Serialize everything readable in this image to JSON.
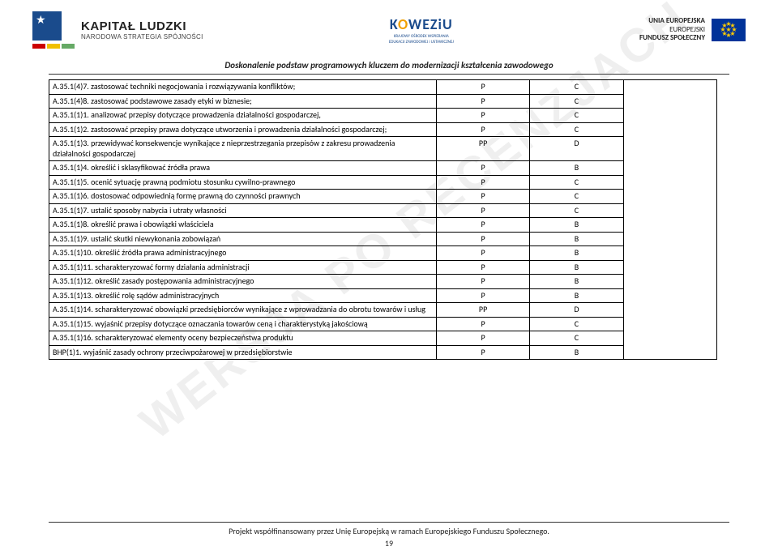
{
  "header": {
    "left": {
      "title": "KAPITAŁ LUDZKI",
      "sub": "NARODOWA STRATEGIA SPÓJNOŚCI"
    },
    "center": {
      "brand_pre": "K",
      "brand_o": "O",
      "brand_post": "WEZiU",
      "sub1": "KRAJOWY OŚRODEK WSPIERANIA",
      "sub2": "EDUKACJI ZAWODOWEJ i USTAWICZNEJ"
    },
    "right": {
      "l1": "UNIA EUROPEJSKA",
      "l2": "EUROPEJSKI",
      "l3": "FUNDUSZ SPOŁECZNY"
    }
  },
  "subtitle": "Doskonalenie podstaw programowych kluczem do modernizacji kształcenia zawodowego",
  "watermark": "WERSJA PO RECENZJACH",
  "rows": [
    {
      "text": "A.35.1(4)7. zastosować techniki negocjowania i rozwiązywania konfliktów;",
      "c2": "P",
      "c3": "C"
    },
    {
      "text": "A.35.1(4)8. zastosować podstawowe zasady etyki w biznesie;",
      "c2": "P",
      "c3": "C"
    },
    {
      "text": "A.35.1(1)1. analizować przepisy dotyczące prowadzenia działalności gospodarczej,",
      "c2": "P",
      "c3": "C"
    },
    {
      "text": "A.35.1(1)2. zastosować przepisy prawa dotyczące utworzenia i prowadzenia działalności gospodarczej;",
      "c2": "P",
      "c3": "C"
    },
    {
      "text": "A.35.1(1)3. przewidywać konsekwencje wynikające z nieprzestrzegania przepisów z zakresu prowadzenia działalności gospodarczej",
      "c2": "PP",
      "c3": "D"
    },
    {
      "text": "A.35.1(1)4. określić i sklasyfikować źródła prawa",
      "c2": "P",
      "c3": "B"
    },
    {
      "text": "A.35.1(1)5. ocenić sytuację prawną podmiotu stosunku cywilno-prawnego",
      "c2": "P",
      "c3": "C"
    },
    {
      "text": "A.35.1(1)6. dostosować odpowiednią formę prawną do czynności prawnych",
      "c2": "P",
      "c3": "C"
    },
    {
      "text": "A.35.1(1)7. ustalić sposoby nabycia i utraty własności",
      "c2": "P",
      "c3": "C"
    },
    {
      "text": "A.35.1(1)8. określić prawa i obowiązki właściciela",
      "c2": "P",
      "c3": "B"
    },
    {
      "text": "A.35.1(1)9. ustalić skutki niewykonania zobowiązań",
      "c2": "P",
      "c3": "B"
    },
    {
      "text": "A.35.1(1)10. określić źródła prawa administracyjnego",
      "c2": "P",
      "c3": "B"
    },
    {
      "text": "A.35.1(1)11. scharakteryzować formy działania administracji",
      "c2": "P",
      "c3": "B"
    },
    {
      "text": "A.35.1(1)12. określić zasady postępowania administracyjnego",
      "c2": "P",
      "c3": "B"
    },
    {
      "text": "A.35.1(1)13. określić rolę sądów administracyjnych",
      "c2": "P",
      "c3": "B"
    },
    {
      "text": "A.35.1(1)14. scharakteryzować obowiązki przedsiębiorców wynikające z wprowadzania do obrotu towarów i usług",
      "c2": "PP",
      "c3": "D"
    },
    {
      "text": "A.35.1(1)15. wyjaśnić  przepisy dotyczące oznaczania towarów ceną i charakterystyką jakościową",
      "c2": "P",
      "c3": "C"
    },
    {
      "text": "A.35.1(1)16. scharakteryzować elementy oceny bezpieczeństwa produktu",
      "c2": "P",
      "c3": "C"
    },
    {
      "text": "BHP(1)1. wyjaśnić zasady ochrony przeciwpożarowej w przedsiębiorstwie",
      "c2": "P",
      "c3": "B"
    }
  ],
  "footer": {
    "text": "Projekt współfinansowany przez Unię Europejską w ramach Europejskiego Funduszu Społecznego.",
    "page": "19"
  }
}
